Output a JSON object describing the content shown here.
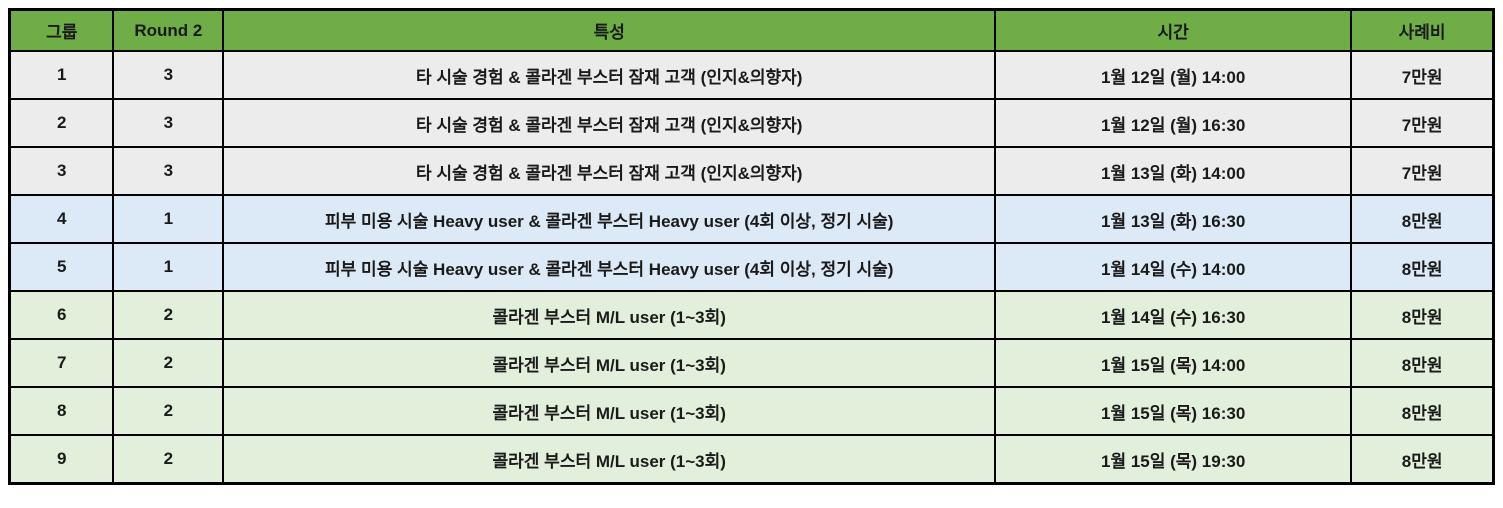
{
  "colors": {
    "header_bg": "#6FAD47",
    "row_gray": "#ECECEC",
    "row_blue": "#DCE9F6",
    "row_green": "#E2EFDA",
    "border": "#000000",
    "text": "#1A1A1A"
  },
  "table": {
    "columns": {
      "group": "그룹",
      "round": "Round 2",
      "trait": "특성",
      "time": "시간",
      "fee": "사례비"
    },
    "rows": [
      {
        "group": "1",
        "round": "3",
        "trait": "타 시술 경험 & 콜라겐 부스터 잠재 고객 (인지&의향자)",
        "time": "1월 12일 (월) 14:00",
        "fee": "7만원"
      },
      {
        "group": "2",
        "round": "3",
        "trait": "타 시술 경험 & 콜라겐 부스터 잠재 고객 (인지&의향자)",
        "time": "1월 12일 (월) 16:30",
        "fee": "7만원"
      },
      {
        "group": "3",
        "round": "3",
        "trait": "타 시술 경험 & 콜라겐 부스터 잠재 고객 (인지&의향자)",
        "time": "1월 13일 (화) 14:00",
        "fee": "7만원"
      },
      {
        "group": "4",
        "round": "1",
        "trait": "피부 미용 시술 Heavy user & 콜라겐 부스터 Heavy user (4회 이상, 정기 시술)",
        "time": "1월 13일 (화) 16:30",
        "fee": "8만원"
      },
      {
        "group": "5",
        "round": "1",
        "trait": "피부 미용 시술 Heavy user & 콜라겐 부스터 Heavy user (4회 이상, 정기 시술)",
        "time": "1월 14일 (수) 14:00",
        "fee": "8만원"
      },
      {
        "group": "6",
        "round": "2",
        "trait": "콜라겐 부스터 M/L user (1~3회)",
        "time": "1월 14일 (수) 16:30",
        "fee": "8만원"
      },
      {
        "group": "7",
        "round": "2",
        "trait": "콜라겐 부스터 M/L user (1~3회)",
        "time": "1월 15일 (목) 14:00",
        "fee": "8만원"
      },
      {
        "group": "8",
        "round": "2",
        "trait": "콜라겐 부스터 M/L user (1~3회)",
        "time": "1월 15일 (목) 16:30",
        "fee": "8만원"
      },
      {
        "group": "9",
        "round": "2",
        "trait": "콜라겐 부스터 M/L user (1~3회)",
        "time": "1월 15일 (목) 19:30",
        "fee": "8만원"
      }
    ]
  }
}
